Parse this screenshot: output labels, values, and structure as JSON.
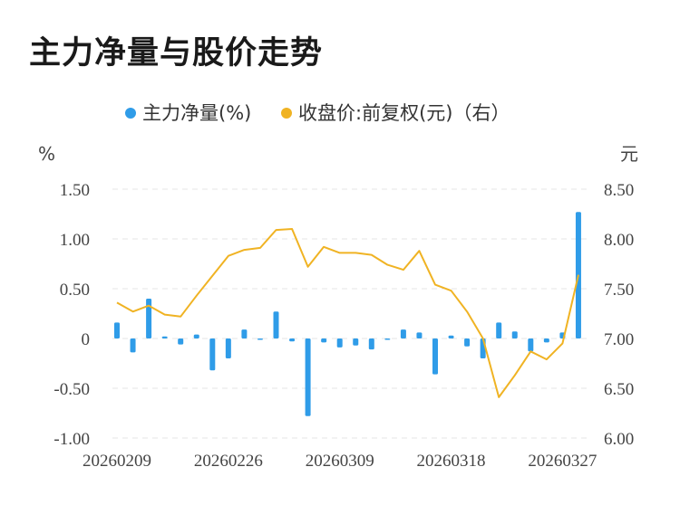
{
  "title": "主力净量与股价走势",
  "chart_data": {
    "type": "bar+line",
    "title": "主力净量与股价走势",
    "legend": [
      {
        "name": "主力净量(%)",
        "color": "#2f9ce8"
      },
      {
        "name": "收盘价:前复权(元)（右）",
        "color": "#f0b323"
      }
    ],
    "left_unit": "%",
    "right_unit": "元",
    "left_axis": {
      "ylim": [
        -1.0,
        1.5
      ],
      "ticks": [
        "1.50",
        "1.00",
        "0.50",
        "0",
        "-0.50",
        "-1.00"
      ],
      "tick_values": [
        1.5,
        1.0,
        0.5,
        0,
        -0.5,
        -1.0
      ]
    },
    "right_axis": {
      "ylim": [
        6.0,
        8.5
      ],
      "ticks": [
        "8.50",
        "8.00",
        "7.50",
        "7.00",
        "6.50",
        "6.00"
      ],
      "tick_values": [
        8.5,
        8.0,
        7.5,
        7.0,
        6.5,
        6.0
      ]
    },
    "x_tick_labels": [
      "20260209",
      "20260226",
      "20260309",
      "20260318",
      "20260327"
    ],
    "x_tick_indices": [
      0,
      7,
      14,
      21,
      28
    ],
    "series": [
      {
        "name": "主力净量(%)",
        "type": "bar",
        "values": [
          0.16,
          -0.14,
          0.4,
          0.02,
          -0.06,
          0.04,
          -0.32,
          -0.2,
          0.09,
          -0.01,
          0.27,
          -0.03,
          -0.78,
          -0.04,
          -0.09,
          -0.07,
          -0.11,
          -0.01,
          0.09,
          0.06,
          -0.36,
          0.03,
          -0.08,
          -0.2,
          0.16,
          0.07,
          -0.13,
          -0.04,
          0.06,
          1.27
        ]
      },
      {
        "name": "收盘价:前复权(元)（右）",
        "type": "line",
        "values": [
          7.36,
          7.27,
          7.33,
          7.24,
          7.22,
          7.43,
          7.63,
          7.83,
          7.89,
          7.91,
          8.09,
          8.1,
          7.72,
          7.92,
          7.86,
          7.86,
          7.84,
          7.74,
          7.69,
          7.88,
          7.54,
          7.48,
          7.27,
          7.0,
          6.41,
          6.63,
          6.87,
          6.79,
          6.95,
          7.64
        ]
      }
    ]
  }
}
